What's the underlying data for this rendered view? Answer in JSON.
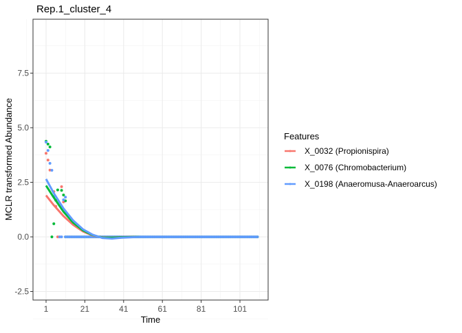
{
  "chart_data": {
    "type": "scatter",
    "title": "Rep.1_cluster_4",
    "xlabel": "Time",
    "ylabel": "MCLR transformed Abundance",
    "xlim": [
      -5,
      111
    ],
    "ylim": [
      -3.0,
      10.0
    ],
    "x_ticks": [
      1,
      21,
      41,
      61,
      81,
      101
    ],
    "y_ticks": [
      -2.5,
      0.0,
      2.5,
      5.0,
      7.5
    ],
    "y_tick_labels": [
      "-2.5",
      "0.0",
      "2.5",
      "5.0",
      "7.5"
    ],
    "grid": true,
    "legend": {
      "title": "Features",
      "placement": "right"
    },
    "series": [
      {
        "name": "X_0032 (Propionispira)",
        "color": "#F8766D",
        "points": [
          [
            1,
            3.83
          ],
          [
            2,
            3.52
          ],
          [
            3,
            3.06
          ],
          [
            5,
            2.07
          ],
          [
            6,
            1.4
          ],
          [
            7,
            0
          ],
          [
            8,
            0
          ],
          [
            9,
            2.3
          ],
          [
            10,
            1.6
          ]
        ],
        "zero_points_x_range": [
          11,
          110
        ],
        "fit": {
          "x": [
            1,
            5,
            10,
            15,
            20,
            25,
            30,
            35,
            40,
            50,
            110
          ],
          "y": [
            1.9,
            1.45,
            0.95,
            0.55,
            0.25,
            0.06,
            -0.02,
            -0.03,
            -0.01,
            0,
            0
          ]
        }
      },
      {
        "name": "X_0076 (Chromobacterium)",
        "color": "#00BA38",
        "points": [
          [
            1,
            4.38
          ],
          [
            2,
            4.25
          ],
          [
            3,
            4.12
          ],
          [
            4,
            0
          ],
          [
            5,
            0.6
          ],
          [
            6,
            1.68
          ],
          [
            7,
            2.15
          ],
          [
            9,
            2.13
          ],
          [
            10,
            1.92
          ],
          [
            11,
            1.65
          ]
        ],
        "zero_points_x_range": [
          11,
          110
        ],
        "fit": {
          "x": [
            1,
            5,
            10,
            15,
            20,
            25,
            30,
            35,
            40,
            50,
            110
          ],
          "y": [
            2.35,
            1.8,
            1.15,
            0.65,
            0.3,
            0.08,
            -0.03,
            -0.04,
            -0.02,
            0,
            0
          ]
        }
      },
      {
        "name": "X_0198 (Anaeromusa-Anaeroarcus)",
        "color": "#619CFF",
        "points": [
          [
            1,
            4.34
          ],
          [
            2,
            3.96
          ],
          [
            3,
            3.37
          ],
          [
            4,
            3.05
          ],
          [
            5,
            1.85
          ],
          [
            8,
            0
          ],
          [
            9,
            0
          ],
          [
            10,
            1.7
          ],
          [
            11,
            1.82
          ]
        ],
        "zero_points_x_range": [
          11,
          110
        ],
        "fit": {
          "x": [
            1,
            5,
            10,
            15,
            20,
            25,
            30,
            35,
            40,
            50,
            110
          ],
          "y": [
            2.65,
            2.0,
            1.3,
            0.75,
            0.35,
            0.1,
            -0.05,
            -0.08,
            -0.04,
            0,
            0
          ]
        }
      }
    ]
  }
}
